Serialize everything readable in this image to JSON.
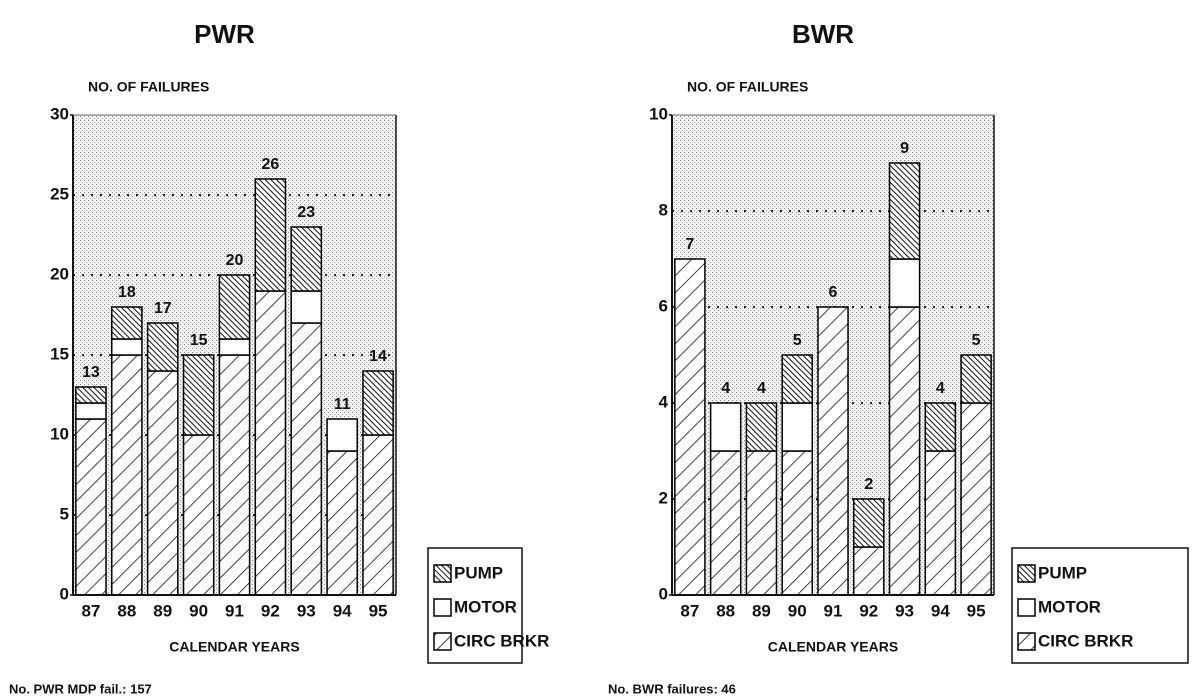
{
  "chart_data": [
    {
      "type": "stacked-bar",
      "title": "PWR",
      "y_label": "NO. OF FAILURES",
      "x_label": "CALENDAR YEARS",
      "categories": [
        "87",
        "88",
        "89",
        "90",
        "91",
        "92",
        "93",
        "94",
        "95"
      ],
      "series": [
        {
          "name": "CIRC BRKR",
          "color": "#000000",
          "hatch": "slash",
          "values": [
            11,
            15,
            14,
            10,
            15,
            19,
            17,
            9,
            10
          ]
        },
        {
          "name": "MOTOR",
          "color": "#000000",
          "hatch": "none",
          "values": [
            1,
            1,
            0,
            0,
            1,
            0,
            2,
            2,
            0
          ]
        },
        {
          "name": "PUMP",
          "color": "#000000",
          "hatch": "backslash",
          "values": [
            1,
            2,
            3,
            5,
            4,
            7,
            4,
            0,
            4
          ]
        }
      ],
      "total_labels": [
        13,
        18,
        17,
        15,
        20,
        26,
        23,
        11,
        14
      ],
      "ylim": [
        0,
        30
      ],
      "yticks": [
        0,
        5,
        10,
        15,
        20,
        25,
        30
      ],
      "grid": true,
      "footnote": "No. PWR MDP fail.: 157"
    },
    {
      "type": "stacked-bar",
      "title": "BWR",
      "y_label": "NO. OF FAILURES",
      "x_label": "CALENDAR YEARS",
      "categories": [
        "87",
        "88",
        "89",
        "90",
        "91",
        "92",
        "93",
        "94",
        "95"
      ],
      "series": [
        {
          "name": "CIRC BRKR",
          "color": "#000000",
          "hatch": "slash",
          "values": [
            7,
            3,
            3,
            3,
            6,
            1,
            6,
            3,
            4
          ]
        },
        {
          "name": "MOTOR",
          "color": "#000000",
          "hatch": "none",
          "values": [
            0,
            1,
            0,
            1,
            0,
            0,
            1,
            0,
            0
          ]
        },
        {
          "name": "PUMP",
          "color": "#000000",
          "hatch": "backslash",
          "values": [
            0,
            0,
            1,
            1,
            0,
            1,
            2,
            1,
            1
          ]
        }
      ],
      "total_labels": [
        7,
        4,
        4,
        5,
        6,
        2,
        9,
        4,
        5
      ],
      "ylim": [
        0,
        10
      ],
      "yticks": [
        0,
        2,
        4,
        6,
        8,
        10
      ],
      "grid": true,
      "footnote": "No. BWR failures: 46"
    }
  ]
}
